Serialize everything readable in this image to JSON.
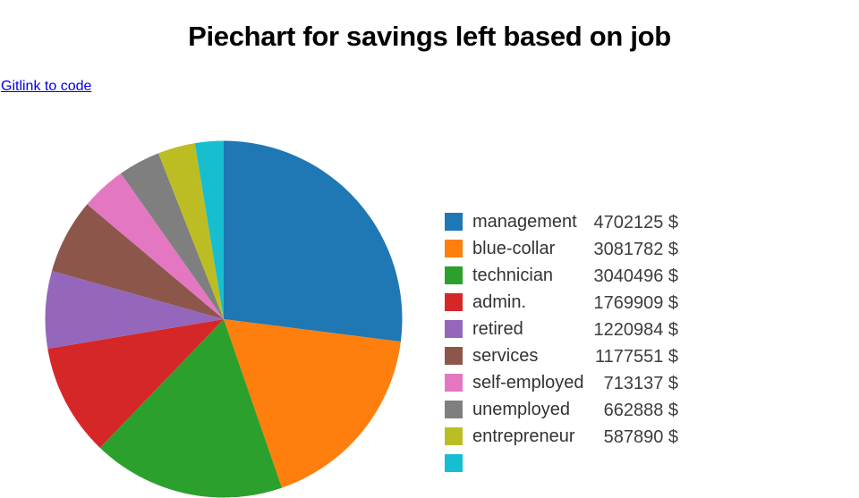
{
  "header": {
    "title": "Piechart for savings left based on job",
    "link_label": "Gitlink to code"
  },
  "chart_data": {
    "type": "pie",
    "title": "Piechart for savings left based on job",
    "unit": "$",
    "start_angle_deg": 90,
    "direction": "clockwise",
    "legend_position": "right",
    "categories": [
      "management",
      "blue-collar",
      "technician",
      "admin.",
      "retired",
      "services",
      "self-employed",
      "unemployed",
      "entrepreneur"
    ],
    "values": [
      4702125,
      3081782,
      3040496,
      1769909,
      1220984,
      1177551,
      713137,
      662888,
      587890
    ],
    "value_labels": [
      "4702125 $",
      "3081782 $",
      "3040496 $",
      "1769909 $",
      "1220984 $",
      "1177551 $",
      "713137 $",
      "662888 $",
      "587890 $"
    ],
    "colors": [
      "#1f77b4",
      "#ff7f0e",
      "#2ca02c",
      "#d62728",
      "#9467bd",
      "#8c564b",
      "#e377c2",
      "#7f7f7f",
      "#bcbd22"
    ],
    "cutoff_slice": {
      "color": "#17becf",
      "estimated_value": 450000,
      "note": "cyan slice visible at top of pie; its legend row is cut off by the bottom edge of the viewport"
    }
  }
}
